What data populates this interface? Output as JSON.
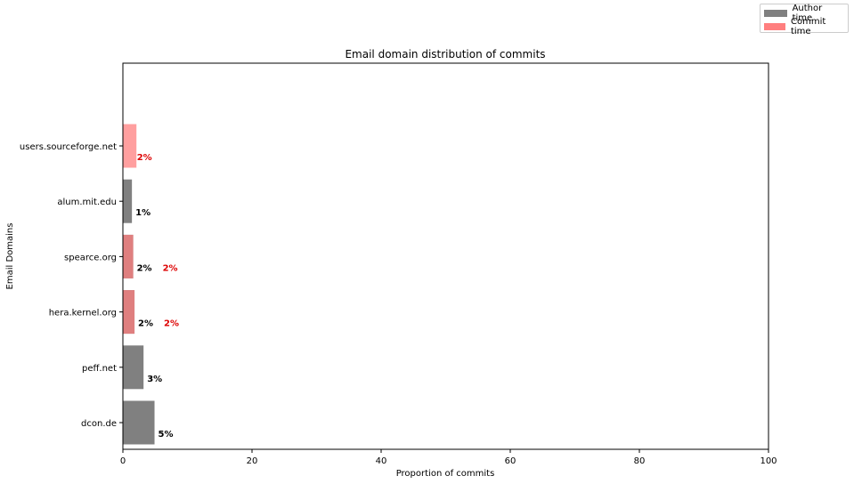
{
  "chart_data": {
    "type": "bar",
    "orientation": "horizontal",
    "title": "Email domain distribution of commits",
    "xlabel": "Proportion of commits",
    "ylabel": "Email Domains",
    "xlim": [
      0,
      100
    ],
    "xticks": [
      "0",
      "20",
      "40",
      "60",
      "80",
      "100"
    ],
    "grid": false,
    "legend_position": "top-right",
    "categories": [
      "dcon.de",
      "peff.net",
      "hera.kernel.org",
      "spearce.org",
      "alum.mit.edu",
      "users.sourceforge.net"
    ],
    "series": [
      {
        "name": "Author time",
        "color": "#808080",
        "label_color": "#000000",
        "values": [
          4.9,
          3.2,
          1.8,
          1.6,
          1.4,
          null
        ],
        "labels": [
          "5%",
          "3%",
          "2%",
          "2%",
          "1%",
          null
        ]
      },
      {
        "name": "Commit time",
        "color": "#ff7f7f",
        "label_color": "#dd0000",
        "values": [
          null,
          null,
          1.8,
          1.6,
          null,
          2.1
        ],
        "labels": [
          null,
          null,
          "2%",
          "2%",
          null,
          "2%"
        ]
      }
    ]
  }
}
